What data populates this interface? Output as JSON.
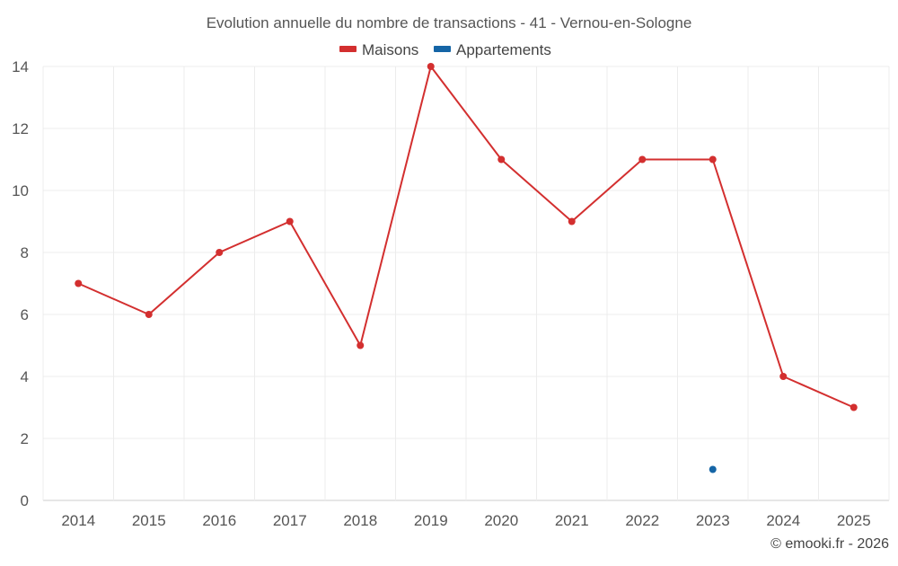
{
  "chart_data": {
    "type": "line",
    "title": "Evolution annuelle du nombre de transactions - 41 - Vernou-en-Sologne",
    "xlabel": "",
    "ylabel": "",
    "categories": [
      "2014",
      "2015",
      "2016",
      "2017",
      "2018",
      "2019",
      "2020",
      "2021",
      "2022",
      "2023",
      "2024",
      "2025"
    ],
    "ylim": [
      0,
      14
    ],
    "yticks": [
      0,
      2,
      4,
      6,
      8,
      10,
      12,
      14
    ],
    "grid": true,
    "legend_position": "top",
    "series": [
      {
        "name": "Maisons",
        "color": "#d32f2f",
        "values": [
          7,
          6,
          8,
          9,
          5,
          14,
          11,
          9,
          11,
          11,
          4,
          3
        ]
      },
      {
        "name": "Appartements",
        "color": "#1565a6",
        "values": [
          null,
          null,
          null,
          null,
          null,
          null,
          null,
          null,
          null,
          1,
          null,
          null
        ]
      }
    ]
  },
  "credit": "© emooki.fr - 2026"
}
